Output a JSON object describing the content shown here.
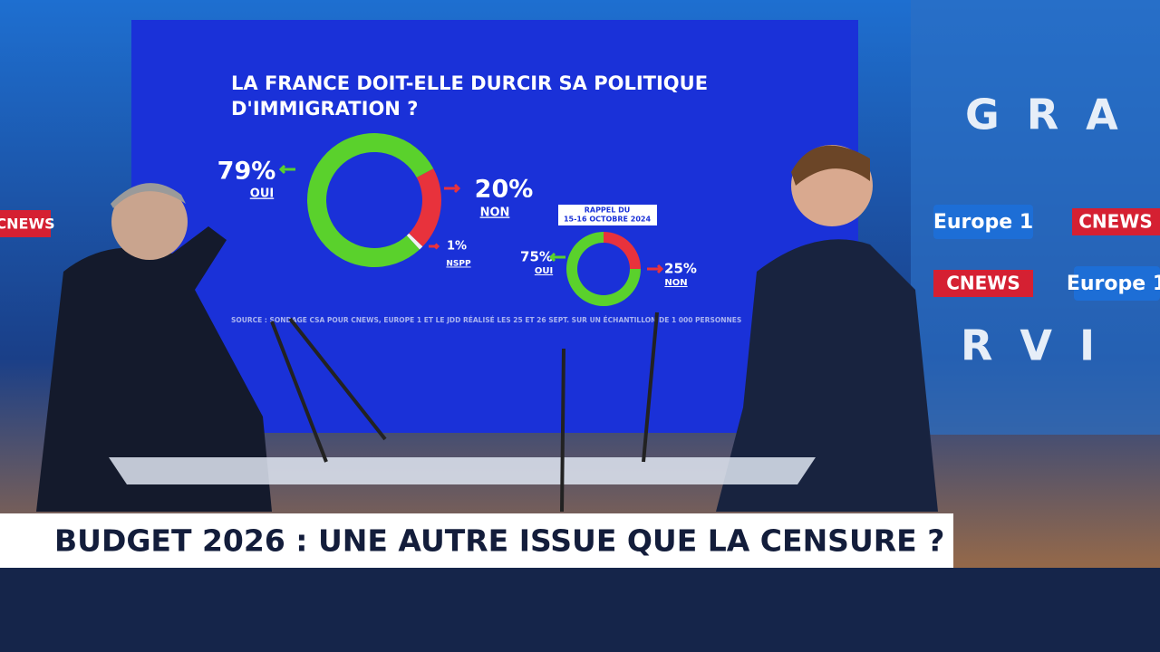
{
  "chart_data": [
    {
      "type": "pie",
      "title": "LA FRANCE DOIT-ELLE DURCIR SA POLITIQUE D'IMMIGRATION ?",
      "categories": [
        "OUI",
        "NON",
        "NSPP"
      ],
      "values": [
        79,
        20,
        1
      ],
      "value_labels": [
        "79%",
        "20%",
        "1%"
      ],
      "colors": [
        "#5ad12c",
        "#e8323c",
        "#f2f2f2"
      ],
      "donut": true,
      "source": "SOURCE : SONDAGE CSA POUR CNEWS, EUROPE 1 ET LE JDD RÉALISÉ LES 25 ET 26 SEPT. SUR UN ÉCHANTILLON DE 1 000 PERSONNES"
    },
    {
      "type": "pie",
      "subtitle": [
        "RAPPEL DU",
        "15-16 OCTOBRE 2024"
      ],
      "categories": [
        "OUI",
        "NON"
      ],
      "values": [
        75,
        25
      ],
      "value_labels": [
        "75%",
        "25%"
      ],
      "colors": [
        "#5ad12c",
        "#e8323c"
      ],
      "donut": true
    }
  ],
  "banner": {
    "title": "BUDGET 2026 : UNE AUTRE ISSUE QUE LA CENSURE ?"
  },
  "background": {
    "logos": [
      "Europe 1",
      "CNEWS"
    ],
    "wall_letters": [
      "GRA",
      "RVI"
    ]
  }
}
